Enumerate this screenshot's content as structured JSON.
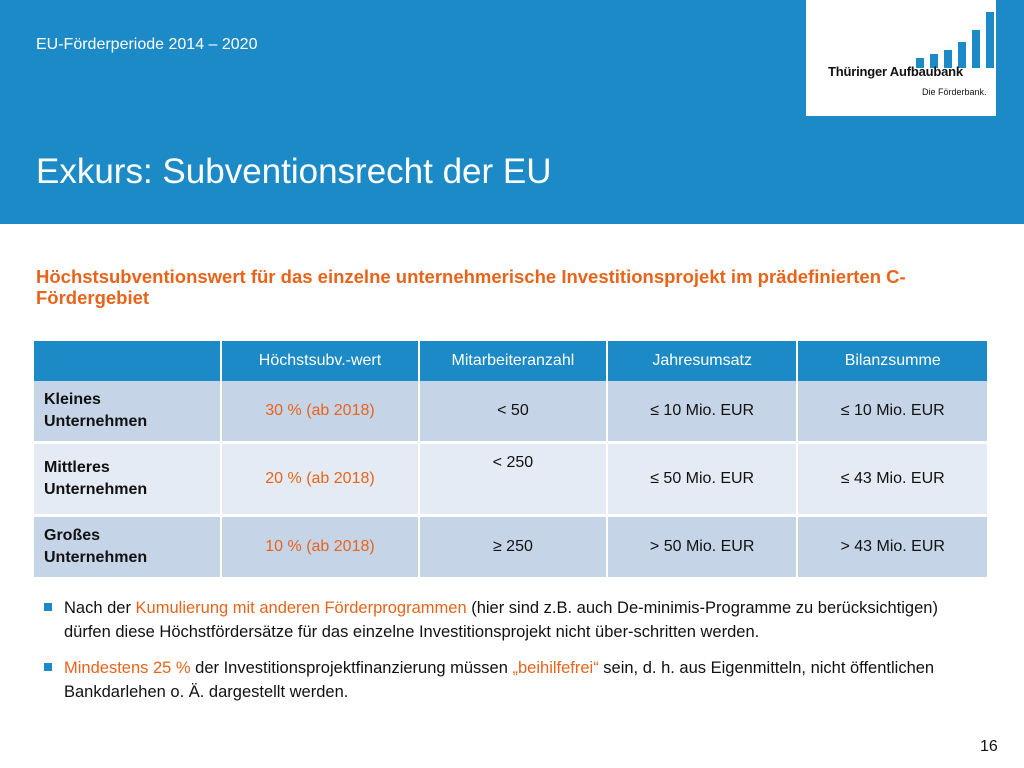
{
  "header": {
    "period": "EU-Förderperiode 2014 – 2020",
    "title": "Exkurs: Subventionsrecht der EU"
  },
  "logo": {
    "name": "Thüringer Aufbaubank",
    "tagline": "Die Förderbank."
  },
  "subtitle": "Höchstsubventionswert für das einzelne unternehmerische Investitionsprojekt im prädefinierten C-Fördergebiet",
  "table": {
    "columns": [
      "",
      "Höchstsubv.-wert",
      "Mitarbeiteranzahl",
      "Jahresumsatz",
      "Bilanzsumme"
    ],
    "rows": [
      {
        "size_line1": "Kleines",
        "size_line2": "Unternehmen",
        "subv": "30 % (ab 2018)",
        "employees": "< 50",
        "turnover": "≤ 10 Mio. EUR",
        "balance": "≤ 10 Mio. EUR"
      },
      {
        "size_line1": "Mittleres",
        "size_line2": "Unternehmen",
        "subv": "20 % (ab 2018)",
        "employees": "< 250",
        "turnover": "≤ 50 Mio. EUR",
        "balance": "≤ 43 Mio. EUR"
      },
      {
        "size_line1": "Großes",
        "size_line2": "Unternehmen",
        "subv": "10 % (ab 2018)",
        "employees": "≥ 250",
        "turnover": "> 50 Mio. EUR",
        "balance": "> 43 Mio. EUR"
      }
    ]
  },
  "bullets": [
    {
      "pre": "Nach der ",
      "highlight": "Kumulierung mit anderen Förderprogrammen",
      "post": " (hier sind z.B. auch De-minimis-Programme zu berücksichtigen) dürfen diese Höchstfördersätze für das einzelne Investitionsprojekt  nicht über-schritten werden."
    },
    {
      "highlight": "Mindestens 25 %",
      "mid": " der Investitionsprojektfinanzierung müssen ",
      "highlight2": "„beihilfefrei“",
      "post": " sein, d. h. aus Eigenmitteln, nicht öffentlichen Bankdarlehen o. Ä. dargestellt werden."
    }
  ],
  "page_number": "16",
  "colors": {
    "brand_blue": "#1b8ac6",
    "accent_orange": "#e8641b",
    "row_dark": "#c6d4e8",
    "row_light": "#e4ebf4"
  }
}
